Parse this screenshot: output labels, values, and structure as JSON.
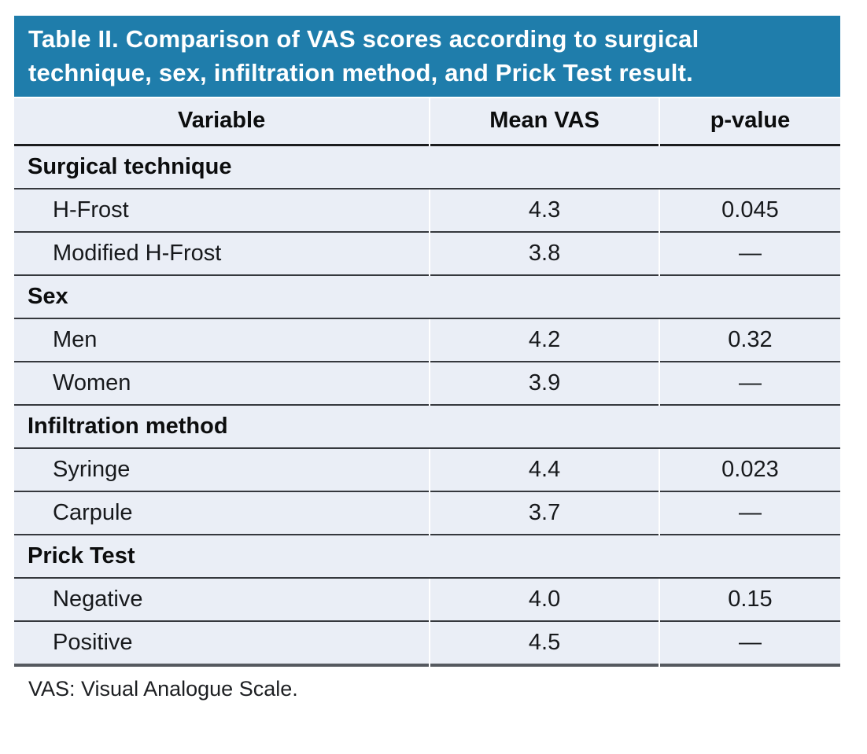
{
  "title": "Table II. Comparison of VAS scores according to surgical technique, sex, infiltration method, and Prick Test result.",
  "columns": {
    "variable": "Variable",
    "mean_vas": "Mean VAS",
    "p_value": "p-value"
  },
  "sections": [
    {
      "header": "Surgical technique",
      "rows": [
        {
          "label": "H-Frost",
          "mean_vas": "4.3",
          "p_value": "0.045"
        },
        {
          "label": "Modified H-Frost",
          "mean_vas": "3.8",
          "p_value": "—"
        }
      ]
    },
    {
      "header": "Sex",
      "rows": [
        {
          "label": "Men",
          "mean_vas": "4.2",
          "p_value": "0.32"
        },
        {
          "label": "Women",
          "mean_vas": "3.9",
          "p_value": "—"
        }
      ]
    },
    {
      "header": "Infiltration method",
      "rows": [
        {
          "label": "Syringe",
          "mean_vas": "4.4",
          "p_value": "0.023"
        },
        {
          "label": "Carpule",
          "mean_vas": "3.7",
          "p_value": "—"
        }
      ]
    },
    {
      "header": "Prick Test",
      "rows": [
        {
          "label": "Negative",
          "mean_vas": "4.0",
          "p_value": "0.15"
        },
        {
          "label": "Positive",
          "mean_vas": "4.5",
          "p_value": "—"
        }
      ]
    }
  ],
  "footnote": "VAS: Visual Analogue Scale.",
  "colors": {
    "title_bar_bg": "#1f7dab",
    "title_text": "#ffffff",
    "table_bg": "#eaeef6",
    "row_rule": "#35383d",
    "header_rule": "#1b1c1e",
    "bottom_rule": "#55595f"
  }
}
